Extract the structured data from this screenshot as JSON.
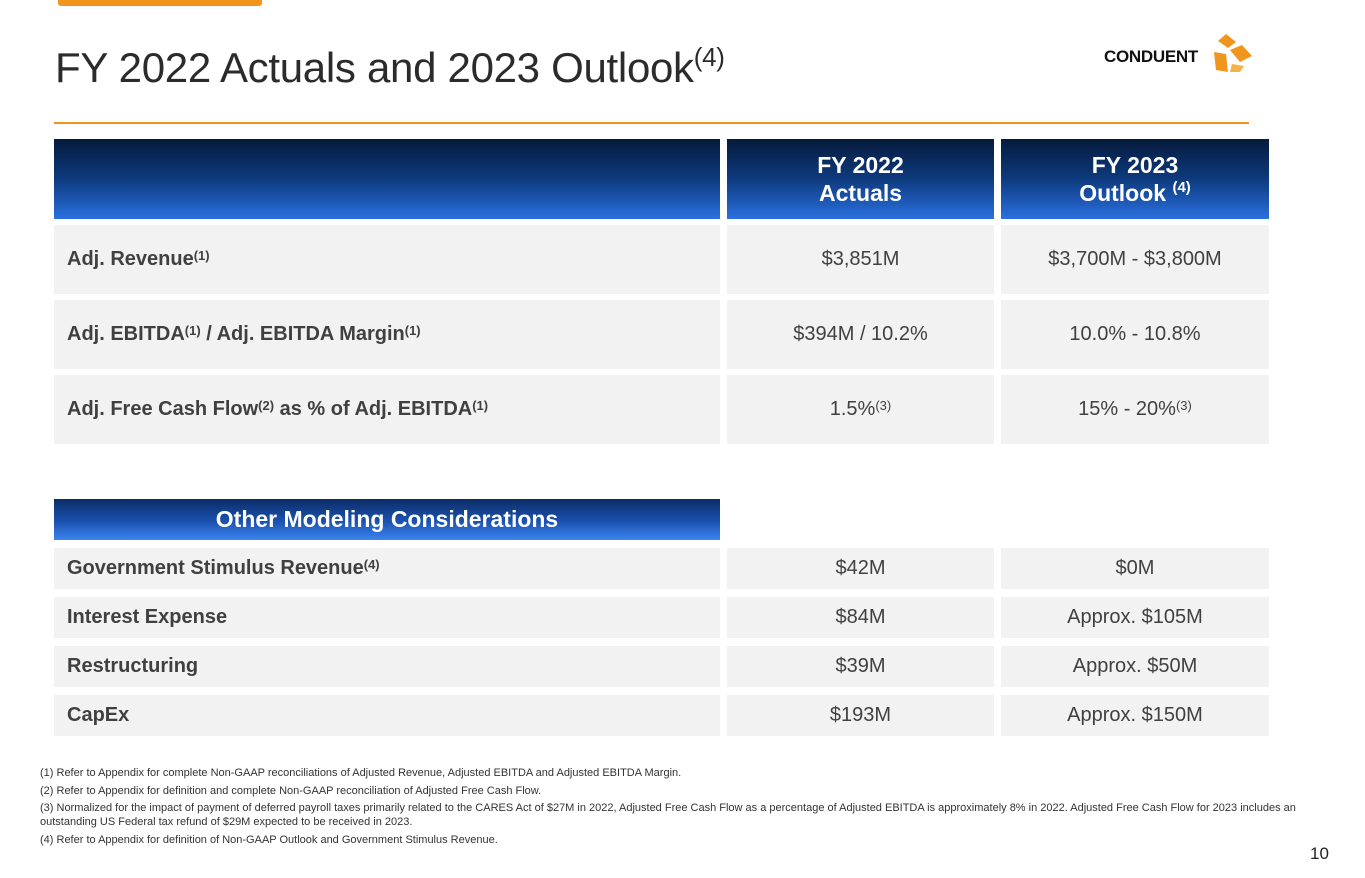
{
  "slide": {
    "title": "FY 2022 Actuals and 2023 Outlook",
    "title_sup": "(4)",
    "logo_text": "CONDUENT",
    "page_number": "10",
    "colors": {
      "accent": "#f0951e",
      "header_dark": "#061a3c",
      "header_light": "#2a70e0",
      "row_bg": "#f2f2f2"
    }
  },
  "table": {
    "headers": {
      "col1_line1": "FY 2022",
      "col1_line2": "Actuals",
      "col2_line1": "FY 2023",
      "col2_line2": "Outlook",
      "col2_sup": "(4)"
    },
    "rows": [
      {
        "label": "Adj. Revenue",
        "label_sup": "(1)",
        "actual": "$3,851M",
        "outlook": "$3,700M - $3,800M"
      },
      {
        "label_a": "Adj. EBITDA",
        "sup_a": "(1)",
        "label_b": " / Adj. EBITDA Margin",
        "sup_b": "(1)",
        "actual": "$394M / 10.2%",
        "outlook": "10.0% - 10.8%"
      },
      {
        "label_a": "Adj. Free Cash Flow",
        "sup_a": "(2)",
        "label_b": " as % of Adj. EBITDA",
        "sup_b": "(1)",
        "actual": "1.5%",
        "actual_sup": "(3)",
        "outlook": "15% - 20%",
        "outlook_sup": "(3)"
      }
    ]
  },
  "other": {
    "header": "Other Modeling Considerations",
    "rows": [
      {
        "label": "Government Stimulus Revenue",
        "label_sup": "(4)",
        "actual": "$42M",
        "outlook": "$0M"
      },
      {
        "label": "Interest Expense",
        "actual": "$84M",
        "outlook": "Approx. $105M"
      },
      {
        "label": "Restructuring",
        "actual": "$39M",
        "outlook": "Approx. $50M"
      },
      {
        "label": "CapEx",
        "actual": "$193M",
        "outlook": "Approx. $150M"
      }
    ]
  },
  "footnotes": [
    "(1)  Refer to Appendix for complete Non-GAAP reconciliations of Adjusted Revenue, Adjusted EBITDA and Adjusted EBITDA Margin.",
    "(2)  Refer to Appendix for definition and complete Non-GAAP reconciliation of Adjusted Free Cash Flow.",
    "(3)  Normalized for the impact of payment of deferred payroll taxes primarily related to the CARES Act of $27M in 2022, Adjusted Free Cash Flow as a percentage of Adjusted EBITDA is approximately 8% in 2022. Adjusted Free Cash Flow for 2023 includes an outstanding US Federal tax refund of $29M expected to be received in 2023.",
    "(4)  Refer to Appendix for definition of Non-GAAP Outlook and Government Stimulus Revenue."
  ]
}
